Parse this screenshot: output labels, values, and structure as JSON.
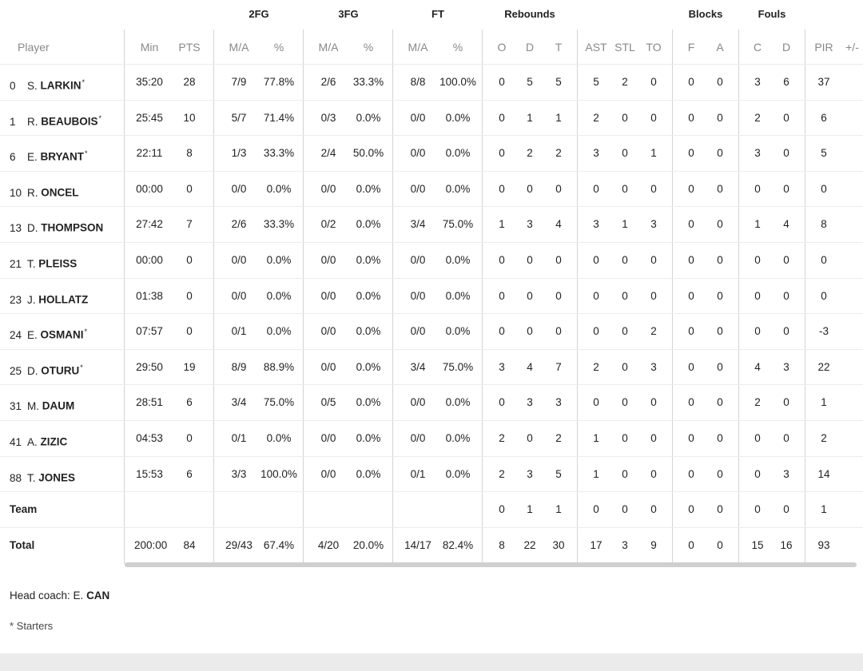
{
  "groups": {
    "fg2": "2FG",
    "fg3": "3FG",
    "ft": "FT",
    "reb": "Rebounds",
    "blk": "Blocks",
    "fouls": "Fouls"
  },
  "headers": {
    "player": "Player",
    "min": "Min",
    "pts": "PTS",
    "fg2_ma": "M/A",
    "fg2_pct": "%",
    "fg3_ma": "M/A",
    "fg3_pct": "%",
    "ft_ma": "M/A",
    "ft_pct": "%",
    "reb_o": "O",
    "reb_d": "D",
    "reb_t": "T",
    "ast": "AST",
    "stl": "STL",
    "to": "TO",
    "blk_f": "F",
    "blk_a": "A",
    "foul_c": "C",
    "foul_d": "D",
    "pir": "PIR",
    "pm": "+/-"
  },
  "players": [
    {
      "num": "0",
      "initial": "S.",
      "surname": "LARKIN",
      "star": "*",
      "min": "35:20",
      "pts": "28",
      "fg2_ma": "7/9",
      "fg2_pct": "77.8%",
      "fg3_ma": "2/6",
      "fg3_pct": "33.3%",
      "ft_ma": "8/8",
      "ft_pct": "100.0%",
      "o": "0",
      "d": "5",
      "t": "5",
      "ast": "5",
      "stl": "2",
      "to": "0",
      "bf": "0",
      "ba": "0",
      "fc": "3",
      "fd": "6",
      "pir": "37"
    },
    {
      "num": "1",
      "initial": "R.",
      "surname": "BEAUBOIS",
      "star": "*",
      "min": "25:45",
      "pts": "10",
      "fg2_ma": "5/7",
      "fg2_pct": "71.4%",
      "fg3_ma": "0/3",
      "fg3_pct": "0.0%",
      "ft_ma": "0/0",
      "ft_pct": "0.0%",
      "o": "0",
      "d": "1",
      "t": "1",
      "ast": "2",
      "stl": "0",
      "to": "0",
      "bf": "0",
      "ba": "0",
      "fc": "2",
      "fd": "0",
      "pir": "6"
    },
    {
      "num": "6",
      "initial": "E.",
      "surname": "BRYANT",
      "star": "*",
      "min": "22:11",
      "pts": "8",
      "fg2_ma": "1/3",
      "fg2_pct": "33.3%",
      "fg3_ma": "2/4",
      "fg3_pct": "50.0%",
      "ft_ma": "0/0",
      "ft_pct": "0.0%",
      "o": "0",
      "d": "2",
      "t": "2",
      "ast": "3",
      "stl": "0",
      "to": "1",
      "bf": "0",
      "ba": "0",
      "fc": "3",
      "fd": "0",
      "pir": "5"
    },
    {
      "num": "10",
      "initial": "R.",
      "surname": "ONCEL",
      "star": "",
      "min": "00:00",
      "pts": "0",
      "fg2_ma": "0/0",
      "fg2_pct": "0.0%",
      "fg3_ma": "0/0",
      "fg3_pct": "0.0%",
      "ft_ma": "0/0",
      "ft_pct": "0.0%",
      "o": "0",
      "d": "0",
      "t": "0",
      "ast": "0",
      "stl": "0",
      "to": "0",
      "bf": "0",
      "ba": "0",
      "fc": "0",
      "fd": "0",
      "pir": "0"
    },
    {
      "num": "13",
      "initial": "D.",
      "surname": "THOMPSON",
      "star": "",
      "min": "27:42",
      "pts": "7",
      "fg2_ma": "2/6",
      "fg2_pct": "33.3%",
      "fg3_ma": "0/2",
      "fg3_pct": "0.0%",
      "ft_ma": "3/4",
      "ft_pct": "75.0%",
      "o": "1",
      "d": "3",
      "t": "4",
      "ast": "3",
      "stl": "1",
      "to": "3",
      "bf": "0",
      "ba": "0",
      "fc": "1",
      "fd": "4",
      "pir": "8"
    },
    {
      "num": "21",
      "initial": "T.",
      "surname": "PLEISS",
      "star": "",
      "min": "00:00",
      "pts": "0",
      "fg2_ma": "0/0",
      "fg2_pct": "0.0%",
      "fg3_ma": "0/0",
      "fg3_pct": "0.0%",
      "ft_ma": "0/0",
      "ft_pct": "0.0%",
      "o": "0",
      "d": "0",
      "t": "0",
      "ast": "0",
      "stl": "0",
      "to": "0",
      "bf": "0",
      "ba": "0",
      "fc": "0",
      "fd": "0",
      "pir": "0"
    },
    {
      "num": "23",
      "initial": "J.",
      "surname": "HOLLATZ",
      "star": "",
      "min": "01:38",
      "pts": "0",
      "fg2_ma": "0/0",
      "fg2_pct": "0.0%",
      "fg3_ma": "0/0",
      "fg3_pct": "0.0%",
      "ft_ma": "0/0",
      "ft_pct": "0.0%",
      "o": "0",
      "d": "0",
      "t": "0",
      "ast": "0",
      "stl": "0",
      "to": "0",
      "bf": "0",
      "ba": "0",
      "fc": "0",
      "fd": "0",
      "pir": "0"
    },
    {
      "num": "24",
      "initial": "E.",
      "surname": "OSMANI",
      "star": "*",
      "min": "07:57",
      "pts": "0",
      "fg2_ma": "0/1",
      "fg2_pct": "0.0%",
      "fg3_ma": "0/0",
      "fg3_pct": "0.0%",
      "ft_ma": "0/0",
      "ft_pct": "0.0%",
      "o": "0",
      "d": "0",
      "t": "0",
      "ast": "0",
      "stl": "0",
      "to": "2",
      "bf": "0",
      "ba": "0",
      "fc": "0",
      "fd": "0",
      "pir": "-3"
    },
    {
      "num": "25",
      "initial": "D.",
      "surname": "OTURU",
      "star": "*",
      "min": "29:50",
      "pts": "19",
      "fg2_ma": "8/9",
      "fg2_pct": "88.9%",
      "fg3_ma": "0/0",
      "fg3_pct": "0.0%",
      "ft_ma": "3/4",
      "ft_pct": "75.0%",
      "o": "3",
      "d": "4",
      "t": "7",
      "ast": "2",
      "stl": "0",
      "to": "3",
      "bf": "0",
      "ba": "0",
      "fc": "4",
      "fd": "3",
      "pir": "22"
    },
    {
      "num": "31",
      "initial": "M.",
      "surname": "DAUM",
      "star": "",
      "min": "28:51",
      "pts": "6",
      "fg2_ma": "3/4",
      "fg2_pct": "75.0%",
      "fg3_ma": "0/5",
      "fg3_pct": "0.0%",
      "ft_ma": "0/0",
      "ft_pct": "0.0%",
      "o": "0",
      "d": "3",
      "t": "3",
      "ast": "0",
      "stl": "0",
      "to": "0",
      "bf": "0",
      "ba": "0",
      "fc": "2",
      "fd": "0",
      "pir": "1"
    },
    {
      "num": "41",
      "initial": "A.",
      "surname": "ZIZIC",
      "star": "",
      "min": "04:53",
      "pts": "0",
      "fg2_ma": "0/1",
      "fg2_pct": "0.0%",
      "fg3_ma": "0/0",
      "fg3_pct": "0.0%",
      "ft_ma": "0/0",
      "ft_pct": "0.0%",
      "o": "2",
      "d": "0",
      "t": "2",
      "ast": "1",
      "stl": "0",
      "to": "0",
      "bf": "0",
      "ba": "0",
      "fc": "0",
      "fd": "0",
      "pir": "2"
    },
    {
      "num": "88",
      "initial": "T.",
      "surname": "JONES",
      "star": "",
      "min": "15:53",
      "pts": "6",
      "fg2_ma": "3/3",
      "fg2_pct": "100.0%",
      "fg3_ma": "0/0",
      "fg3_pct": "0.0%",
      "ft_ma": "0/1",
      "ft_pct": "0.0%",
      "o": "2",
      "d": "3",
      "t": "5",
      "ast": "1",
      "stl": "0",
      "to": "0",
      "bf": "0",
      "ba": "0",
      "fc": "0",
      "fd": "3",
      "pir": "14"
    }
  ],
  "team_row": {
    "label": "Team",
    "min": "",
    "pts": "",
    "fg2_ma": "",
    "fg2_pct": "",
    "fg3_ma": "",
    "fg3_pct": "",
    "ft_ma": "",
    "ft_pct": "",
    "o": "0",
    "d": "1",
    "t": "1",
    "ast": "0",
    "stl": "0",
    "to": "0",
    "bf": "0",
    "ba": "0",
    "fc": "0",
    "fd": "0",
    "pir": "1"
  },
  "total_row": {
    "label": "Total",
    "min": "200:00",
    "pts": "84",
    "fg2_ma": "29/43",
    "fg2_pct": "67.4%",
    "fg3_ma": "4/20",
    "fg3_pct": "20.0%",
    "ft_ma": "14/17",
    "ft_pct": "82.4%",
    "o": "8",
    "d": "22",
    "t": "30",
    "ast": "17",
    "stl": "3",
    "to": "9",
    "bf": "0",
    "ba": "0",
    "fc": "15",
    "fd": "16",
    "pir": "93"
  },
  "coach": {
    "label": "Head coach: E. ",
    "name": "CAN"
  },
  "note": "* Starters"
}
